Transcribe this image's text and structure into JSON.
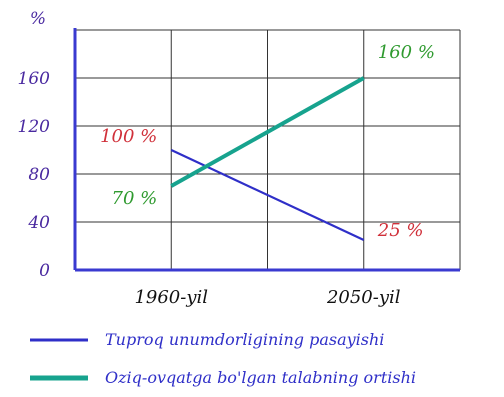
{
  "chart_data": {
    "type": "line",
    "ylabel": "%",
    "xlabel": "",
    "categories": [
      "1960-yil",
      "2050-yil"
    ],
    "yticks": [
      0,
      40,
      80,
      120,
      160
    ],
    "ylim": [
      0,
      200
    ],
    "grid": true,
    "legend_position": "bottom",
    "series": [
      {
        "name": "Tuproq unumdorligining pasayishi",
        "values": [
          100,
          25
        ],
        "color": "#2f2fc8",
        "point_labels": [
          "100 %",
          "25 %"
        ],
        "point_label_color": "#d0303a"
      },
      {
        "name": "Oziq-ovqatga bo'lgan talabning ortishi",
        "values": [
          70,
          160
        ],
        "color": "#17a38e",
        "point_labels": [
          "70 %",
          "160 %"
        ],
        "point_label_color": "#2f9a2f"
      }
    ]
  },
  "colors": {
    "axis": "#3a3ad0",
    "tick_text": "#4a2aa0",
    "grid": "#333333",
    "category_text": "#111111",
    "legend_text": "#2f2fc8"
  }
}
